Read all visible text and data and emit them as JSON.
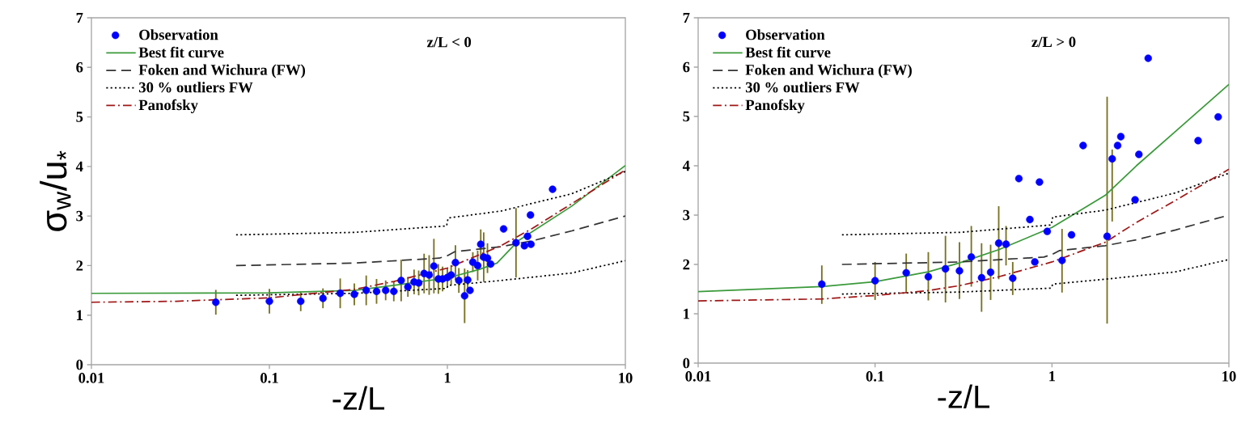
{
  "chart_data": [
    {
      "type": "scatter",
      "xlabel": "-z/L",
      "ylabel": "σ$_{w}$/u$_{*}$",
      "annotations": [
        "z/L < 0"
      ],
      "log": "x",
      "xlim": [
        0.01,
        10
      ],
      "ylim": [
        0,
        7
      ],
      "xticks": [
        0.01,
        0.1,
        1,
        10
      ],
      "yticks": [
        0,
        1,
        2,
        3,
        4,
        5,
        6,
        7
      ],
      "legend": "top left",
      "grid": false,
      "series": [
        {
          "name": "Observation",
          "type": "scatter",
          "marker": "circle",
          "color": "#0000ff",
          "x": [
            0.05,
            0.1,
            0.15,
            0.2,
            0.25,
            0.3,
            0.35,
            0.4,
            0.45,
            0.5,
            0.55,
            0.6,
            0.65,
            0.69,
            0.74,
            0.79,
            0.84,
            0.89,
            0.94,
            1.0,
            1.05,
            1.11,
            1.16,
            1.25,
            1.3,
            1.34,
            1.39,
            1.48,
            1.54,
            1.6,
            1.68,
            1.75,
            2.07,
            2.43,
            2.71,
            2.82,
            2.93,
            2.95,
            3.9
          ],
          "values": [
            1.26,
            1.28,
            1.28,
            1.34,
            1.44,
            1.42,
            1.5,
            1.48,
            1.5,
            1.48,
            1.7,
            1.57,
            1.67,
            1.65,
            1.84,
            1.81,
            1.99,
            1.73,
            1.73,
            1.76,
            1.81,
            2.06,
            1.7,
            1.39,
            1.71,
            1.5,
            2.07,
            2.0,
            2.43,
            2.17,
            2.15,
            2.03,
            2.74,
            2.46,
            2.4,
            2.59,
            3.02,
            2.43,
            3.54
          ],
          "errors": [
            0.25,
            0.25,
            0.2,
            0.2,
            0.3,
            0.22,
            0.3,
            0.25,
            0.2,
            0.2,
            0.42,
            0.2,
            0.25,
            0.25,
            0.4,
            0.4,
            0.55,
            0.3,
            0.25,
            0.2,
            0.2,
            0.35,
            0.25,
            0.55,
            0.2,
            null,
            0.2,
            0.3,
            0.3,
            0.5,
            0.3,
            null,
            null,
            0.7,
            null,
            null,
            null,
            null,
            null
          ]
        },
        {
          "name": "Best fit curve",
          "type": "line",
          "line_style": "solid",
          "color": "#3a9a3a",
          "x": [
            0.01,
            0.1,
            0.3,
            0.5,
            1,
            1.5,
            1.9,
            2.5,
            5,
            10
          ],
          "values": [
            1.44,
            1.45,
            1.5,
            1.6,
            1.75,
            1.92,
            2.05,
            2.5,
            3.2,
            4.02
          ]
        },
        {
          "name": "Foken and Wichura (FW)",
          "type": "line",
          "line_style": "dashed",
          "color": "#333333",
          "x": [
            0.065,
            0.3,
            0.9,
            1.0,
            1.1,
            2,
            3,
            5,
            10
          ],
          "values": [
            2.0,
            2.05,
            2.15,
            2.2,
            2.28,
            2.38,
            2.5,
            2.7,
            3.0
          ]
        },
        {
          "name": "30 % outliers FW",
          "type": "line",
          "line_style": "dotted",
          "color": "#000000",
          "x": [
            0.065,
            0.3,
            0.99,
            1.01,
            2,
            5,
            10
          ],
          "values": [
            2.62,
            2.67,
            2.8,
            2.96,
            3.1,
            3.45,
            3.9
          ]
        },
        {
          "type": "line",
          "line_style": "dotted",
          "color": "#000000",
          "x": [
            0.065,
            0.3,
            0.99,
            1.01,
            2,
            5,
            10
          ],
          "values": [
            1.4,
            1.44,
            1.54,
            1.6,
            1.7,
            1.85,
            2.1
          ]
        },
        {
          "name": "Panofsky",
          "type": "line",
          "line_style": "dashdot",
          "color": "#a01818",
          "x": [
            0.01,
            0.03,
            0.1,
            0.3,
            0.5,
            1,
            2,
            3,
            5,
            10
          ],
          "values": [
            1.26,
            1.28,
            1.35,
            1.52,
            1.68,
            1.95,
            2.4,
            2.75,
            3.25,
            3.93
          ]
        }
      ]
    },
    {
      "type": "scatter",
      "xlabel": "-z/L",
      "annotations": [
        "z/L > 0"
      ],
      "log": "x",
      "xlim": [
        0.01,
        10
      ],
      "ylim": [
        0,
        7
      ],
      "xticks": [
        0.01,
        0.1,
        1,
        10
      ],
      "yticks": [
        0,
        1,
        2,
        3,
        4,
        5,
        6,
        7
      ],
      "legend": "top left",
      "grid": false,
      "series": [
        {
          "name": "Observation",
          "type": "scatter",
          "marker": "circle",
          "color": "#0000ff",
          "x": [
            0.05,
            0.1,
            0.15,
            0.2,
            0.25,
            0.3,
            0.35,
            0.4,
            0.45,
            0.5,
            0.55,
            0.6,
            0.65,
            0.75,
            0.8,
            0.85,
            0.94,
            1.14,
            1.29,
            1.5,
            2.05,
            2.19,
            2.35,
            2.45,
            2.95,
            3.1,
            3.5,
            6.7,
            8.7
          ],
          "values": [
            1.6,
            1.67,
            1.83,
            1.75,
            1.91,
            1.87,
            2.15,
            1.73,
            1.84,
            2.43,
            2.41,
            1.72,
            3.74,
            2.91,
            2.05,
            3.67,
            2.67,
            2.08,
            2.6,
            4.41,
            2.57,
            4.14,
            4.41,
            4.59,
            3.31,
            4.23,
            6.18,
            4.51,
            4.99
          ],
          "errors": [
            [
              1.2,
              1.98
            ],
            [
              1.28,
              2.05
            ],
            [
              1.42,
              2.22
            ],
            [
              1.27,
              2.25
            ],
            [
              1.23,
              2.58
            ],
            [
              1.3,
              2.45
            ],
            [
              1.55,
              2.78
            ],
            [
              1.04,
              2.43
            ],
            [
              1.28,
              2.4
            ],
            [
              1.7,
              3.18
            ],
            [
              1.98,
              2.78
            ],
            [
              1.38,
              2.05
            ],
            null,
            null,
            null,
            null,
            null,
            [
              1.43,
              2.72
            ],
            null,
            null,
            [
              0.8,
              5.4
            ],
            [
              2.87,
              4.33
            ],
            null,
            null,
            null,
            null,
            null,
            null,
            null
          ]
        },
        {
          "name": "Best fit curve",
          "type": "line",
          "line_style": "solid",
          "color": "#3a9a3a",
          "x": [
            0.01,
            0.05,
            0.1,
            0.2,
            0.3,
            0.5,
            1,
            2,
            3,
            5,
            10
          ],
          "values": [
            1.45,
            1.55,
            1.65,
            1.85,
            2.03,
            2.3,
            2.75,
            3.4,
            4.0,
            4.7,
            5.65
          ]
        },
        {
          "name": "Foken and Wichura (FW)",
          "type": "line",
          "line_style": "dashed",
          "color": "#333333",
          "x": [
            0.065,
            0.3,
            0.9,
            1.0,
            1.1,
            2,
            3,
            5,
            10
          ],
          "values": [
            2.0,
            2.05,
            2.15,
            2.2,
            2.28,
            2.38,
            2.5,
            2.7,
            3.0
          ]
        },
        {
          "name": "30 % outliers FW",
          "type": "line",
          "line_style": "dotted",
          "color": "#000000",
          "x": [
            0.065,
            0.3,
            0.99,
            1.01,
            2,
            5,
            10
          ],
          "values": [
            2.6,
            2.65,
            2.8,
            2.96,
            3.1,
            3.45,
            3.85
          ]
        },
        {
          "type": "line",
          "line_style": "dotted",
          "color": "#000000",
          "x": [
            0.065,
            0.3,
            0.99,
            1.01,
            2,
            5,
            10
          ],
          "values": [
            1.4,
            1.44,
            1.52,
            1.6,
            1.7,
            1.85,
            2.1
          ]
        },
        {
          "name": "Panofsky",
          "type": "line",
          "line_style": "dashdot",
          "color": "#a01818",
          "x": [
            0.01,
            0.05,
            0.1,
            0.2,
            0.3,
            0.5,
            1,
            2,
            3,
            5,
            10
          ],
          "values": [
            1.26,
            1.3,
            1.37,
            1.47,
            1.57,
            1.75,
            2.05,
            2.45,
            2.85,
            3.3,
            3.93
          ]
        }
      ]
    }
  ]
}
